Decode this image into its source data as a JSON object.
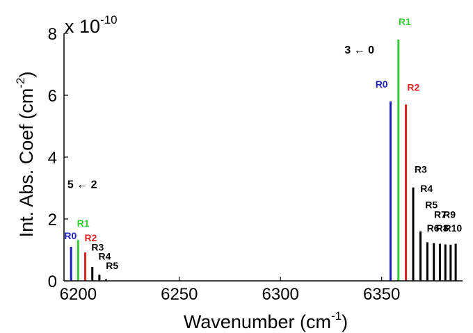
{
  "chart_data": {
    "type": "bar",
    "xlabel_main": "Wavenumber (cm",
    "xlabel_sup": "-1",
    "xlabel_end": ")",
    "ylabel_main": "Int. Abs. Coef (cm",
    "ylabel_sup": "-2",
    "ylabel_end": ")",
    "multiplier_main": "x 10",
    "multiplier_exp": "-10",
    "xlim": [
      6193,
      6390
    ],
    "ylim": [
      0,
      8
    ],
    "xticks": [
      6200,
      6250,
      6300,
      6350
    ],
    "yticks": [
      0,
      2,
      4,
      6,
      8
    ],
    "band_labels": [
      {
        "text": "5 ← 2",
        "x": 6202,
        "y": 3.0
      },
      {
        "text": "3 ← 0",
        "x": 6339,
        "y": 7.35
      }
    ],
    "series": [
      {
        "band": "5 ← 2",
        "lines": [
          {
            "label": "R0",
            "x": 6196.5,
            "y": 1.1,
            "color": "#1f1fbf",
            "label_x": 6196.2,
            "label_y": 1.35
          },
          {
            "label": "R1",
            "x": 6200.0,
            "y": 1.32,
            "color": "#33cc33",
            "label_x": 6202.5,
            "label_y": 1.75
          },
          {
            "label": "R2",
            "x": 6203.5,
            "y": 0.92,
            "color": "#dd2222",
            "label_x": 6206.2,
            "label_y": 1.28
          },
          {
            "label": "R3",
            "x": 6207.0,
            "y": 0.45,
            "color": "#000000",
            "label_x": 6209.6,
            "label_y": 0.98
          },
          {
            "label": "R4",
            "x": 6210.5,
            "y": 0.2,
            "color": "#000000",
            "label_x": 6213.1,
            "label_y": 0.68
          },
          {
            "label": "R5",
            "x": 6213.8,
            "y": 0.05,
            "color": "#000000",
            "label_x": 6216.8,
            "label_y": 0.38
          }
        ]
      },
      {
        "band": "3 ← 0",
        "lines": [
          {
            "label": "R0",
            "x": 6354.4,
            "y": 5.8,
            "color": "#1f1fbf",
            "label_x": 6350.0,
            "label_y": 6.25
          },
          {
            "label": "R1",
            "x": 6358.3,
            "y": 7.8,
            "color": "#33cc33",
            "label_x": 6361.4,
            "label_y": 8.27
          },
          {
            "label": "R2",
            "x": 6362.0,
            "y": 5.7,
            "color": "#dd2222",
            "label_x": 6365.7,
            "label_y": 6.15
          },
          {
            "label": "R3",
            "x": 6365.6,
            "y": 3.02,
            "color": "#000000",
            "label_x": 6369.3,
            "label_y": 3.5
          },
          {
            "label": "R4",
            "x": 6369.2,
            "y": 1.6,
            "color": "#000000",
            "label_x": 6372.2,
            "label_y": 2.88
          },
          {
            "label": "R5",
            "x": 6372.6,
            "y": 1.25,
            "color": "#000000",
            "label_x": 6374.6,
            "label_y": 2.35
          },
          {
            "label": "R6",
            "x": 6375.8,
            "y": 1.22,
            "color": "#000000",
            "label_x": 6375.4,
            "label_y": 1.6
          },
          {
            "label": "R7",
            "x": 6378.8,
            "y": 1.2,
            "color": "#000000",
            "label_x": 6379.0,
            "label_y": 2.03
          },
          {
            "label": "R8",
            "x": 6381.5,
            "y": 1.18,
            "color": "#000000",
            "label_x": 6379.9,
            "label_y": 1.6
          },
          {
            "label": "R9",
            "x": 6384.1,
            "y": 1.17,
            "color": "#000000",
            "label_x": 6383.5,
            "label_y": 2.03
          },
          {
            "label": "R10",
            "x": 6386.6,
            "y": 1.2,
            "color": "#000000",
            "label_x": 6385.3,
            "label_y": 1.6
          }
        ]
      }
    ]
  }
}
